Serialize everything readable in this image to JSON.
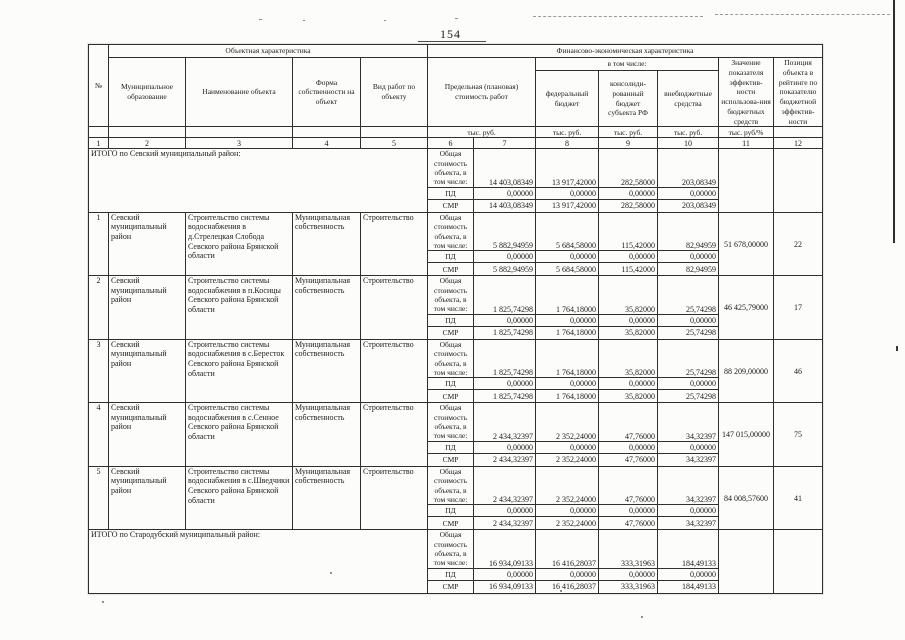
{
  "page": {
    "number": "154"
  },
  "table": {
    "header": {
      "no": "№",
      "group_object": "Объектная характеристика",
      "group_finance": "Финансово-экономическая характеристика",
      "including": "в том числе:",
      "municipality": "Муниципальное образование",
      "object_name": "Наименование объекта",
      "ownership": "Форма собственности на объект",
      "work_type": "Вид работ по объекту",
      "limit_cost": "Предельная (плановая) стоимость работ",
      "federal_budget": "федеральный бюджет",
      "consolidated_budget": "консолиди-рованный бюджет субъекта РФ",
      "extra_budget": "внебюджетные средства",
      "efficiency": "Значение показателя эффектив-ности использова-ния бюджетных средств",
      "position": "Позиция объекта в рейтинге по показателю бюджетной эффектив-ности",
      "unit_cost": "тыс. руб.",
      "unit_federal": "тыс. руб.",
      "unit_consolidated": "тыс. руб.",
      "unit_extra": "тыс. руб.",
      "unit_efficiency": "тыс. руб/%",
      "col_numbers": [
        "1",
        "2",
        "3",
        "4",
        "5",
        "6",
        "7",
        "8",
        "9",
        "10",
        "11",
        "12"
      ]
    },
    "sub_labels": {
      "total": "Общая стоимость объекта, в том числе:",
      "pd": "ПД",
      "smr": "СМР"
    },
    "rows": [
      {
        "type": "total",
        "label": "ИТОГО по Севский муниципальный район:",
        "total": [
          "14 403,08349",
          "13 917,42000",
          "282,58000",
          "203,08349"
        ],
        "pd": [
          "0,00000",
          "0,00000",
          "0,00000",
          "0,00000"
        ],
        "smr": [
          "14 403,08349",
          "13 917,42000",
          "282,58000",
          "203,08349"
        ],
        "efficiency": "",
        "position": ""
      },
      {
        "type": "data",
        "num": "1",
        "municipality": "Севский муниципальный район",
        "object": "Строительство системы водоснабжения в д.Стрелецкая Слобода Севского района Брянской области",
        "ownership": "Муниципальная собственность",
        "work": "Строительство",
        "total": [
          "5 882,94959",
          "5 684,58000",
          "115,42000",
          "82,94959"
        ],
        "pd": [
          "0,00000",
          "0,00000",
          "0,00000",
          "0,00000"
        ],
        "smr": [
          "5 882,94959",
          "5 684,58000",
          "115,42000",
          "82,94959"
        ],
        "efficiency": "51 678,00000",
        "position": "22"
      },
      {
        "type": "data",
        "num": "2",
        "municipality": "Севский муниципальный район",
        "object": "Строительство системы водоснабжения в п.Косицы Севского района Брянской области",
        "ownership": "Муниципальная собственность",
        "work": "Строительство",
        "total": [
          "1 825,74298",
          "1 764,18000",
          "35,82000",
          "25,74298"
        ],
        "pd": [
          "0,00000",
          "0,00000",
          "0,00000",
          "0,00000"
        ],
        "smr": [
          "1 825,74298",
          "1 764,18000",
          "35,82000",
          "25,74298"
        ],
        "efficiency": "46 425,79000",
        "position": "17"
      },
      {
        "type": "data",
        "num": "3",
        "municipality": "Севский муниципальный район",
        "object": "Строительство системы водоснабжения в с.Бересток Севского района Брянской области",
        "ownership": "Муниципальная собственность",
        "work": "Строительство",
        "total": [
          "1 825,74298",
          "1 764,18000",
          "35,82000",
          "25,74298"
        ],
        "pd": [
          "0,00000",
          "0,00000",
          "0,00000",
          "0,00000"
        ],
        "smr": [
          "1 825,74298",
          "1 764,18000",
          "35,82000",
          "25,74298"
        ],
        "efficiency": "88 209,00000",
        "position": "46"
      },
      {
        "type": "data",
        "num": "4",
        "municipality": "Севский муниципальный район",
        "object": "Строительство системы водоснабжения в с.Сенное Севского района Брянской области",
        "ownership": "Муниципальная собственность",
        "work": "Строительство",
        "total": [
          "2 434,32397",
          "2 352,24000",
          "47,76000",
          "34,32397"
        ],
        "pd": [
          "0,00000",
          "0,00000",
          "0,00000",
          "0,00000"
        ],
        "smr": [
          "2 434,32397",
          "2 352,24000",
          "47,76000",
          "34,32397"
        ],
        "efficiency": "147 015,00000",
        "position": "75"
      },
      {
        "type": "data",
        "num": "5",
        "municipality": "Севский муниципальный район",
        "object": "Строительство системы водоснабжения в с.Шведчики Севского района Брянской области",
        "ownership": "Муниципальная собственность",
        "work": "Строительство",
        "total": [
          "2 434,32397",
          "2 352,24000",
          "47,76000",
          "34,32397"
        ],
        "pd": [
          "0,00000",
          "0,00000",
          "0,00000",
          "0,00000"
        ],
        "smr": [
          "2 434,32397",
          "2 352,24000",
          "47,76000",
          "34,32397"
        ],
        "efficiency": "84 008,57600",
        "position": "41"
      },
      {
        "type": "total",
        "label": "ИТОГО по Стародубский муниципальный район:",
        "total": [
          "16 934,09133",
          "16 416,28037",
          "333,31963",
          "184,49133"
        ],
        "pd": [
          "0,00000",
          "0,00000",
          "0,00000",
          "0,00000"
        ],
        "smr": [
          "16 934,09133",
          "16 416,28037",
          "333,31963",
          "184,49133"
        ],
        "efficiency": "",
        "position": ""
      }
    ]
  }
}
